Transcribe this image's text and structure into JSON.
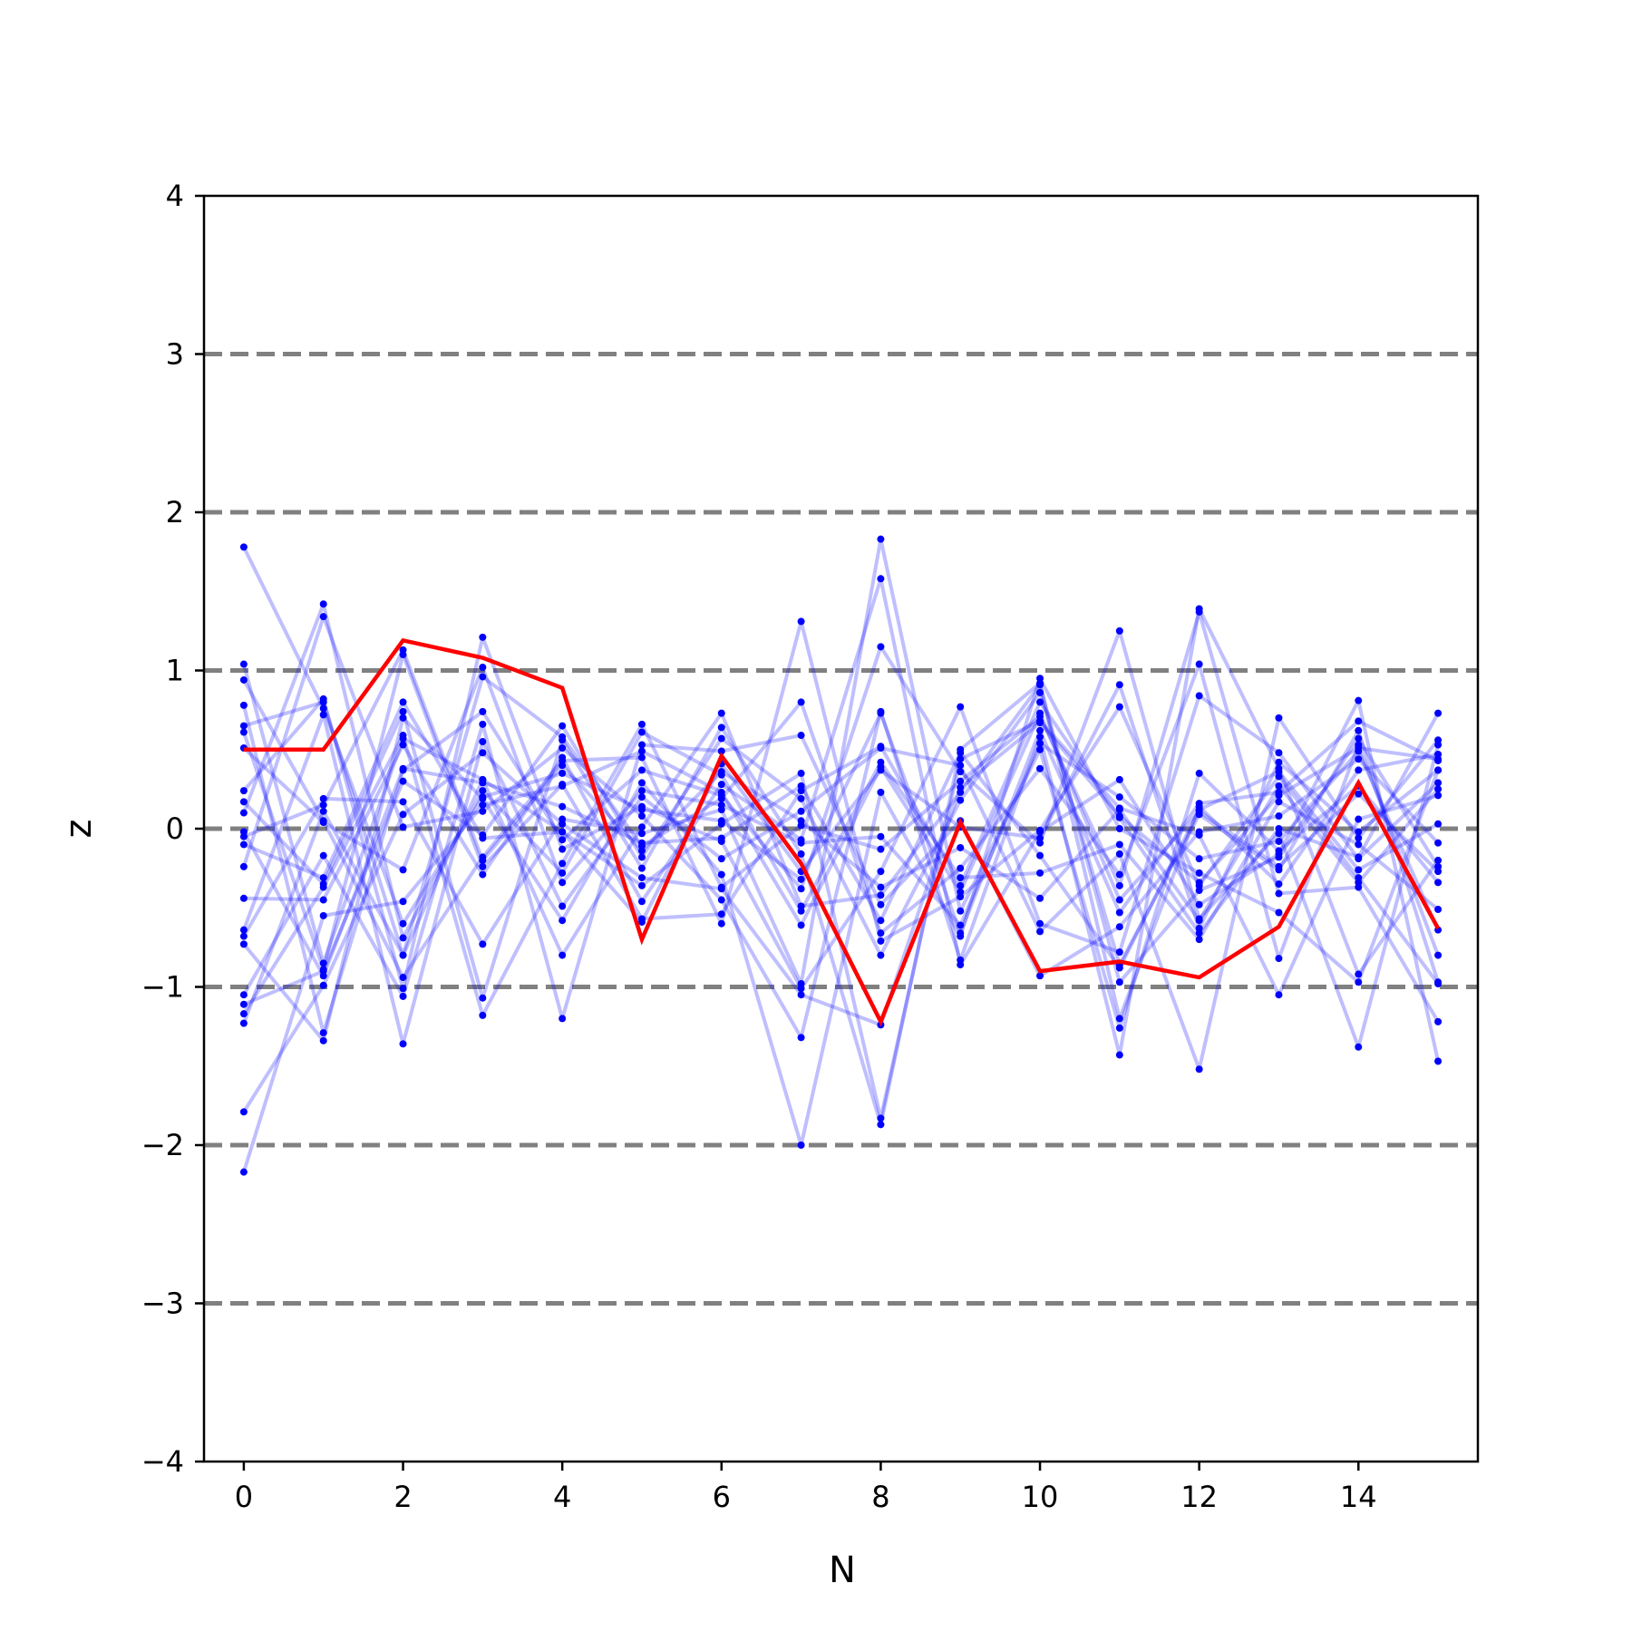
{
  "chart_data": {
    "type": "line",
    "title": "",
    "xlabel": "N",
    "ylabel": "z",
    "xlim": [
      -0.5,
      15.5
    ],
    "ylim": [
      -4,
      4
    ],
    "x": [
      0,
      1,
      2,
      3,
      4,
      5,
      6,
      7,
      8,
      9,
      10,
      11,
      12,
      13,
      14,
      15
    ],
    "x_ticks": [
      0,
      2,
      4,
      6,
      8,
      10,
      12,
      14
    ],
    "x_tick_labels": [
      "0",
      "2",
      "4",
      "6",
      "8",
      "10",
      "12",
      "14"
    ],
    "y_ticks": [
      -4,
      -3,
      -2,
      -1,
      0,
      1,
      2,
      3,
      4
    ],
    "y_tick_labels": [
      "−4",
      "−3",
      "−2",
      "−1",
      "0",
      "1",
      "2",
      "3",
      "4"
    ],
    "reference_lines": [
      -3,
      -2,
      -1,
      0,
      1,
      2,
      3
    ],
    "grid": false,
    "legend": "none",
    "colors": {
      "background_series": "#0000ff",
      "highlight_series": "#ff0000",
      "reference_lines": "#808080",
      "axes": "#000000"
    },
    "highlight_series": {
      "values": [
        0.5,
        0.5,
        1.19,
        1.08,
        0.89,
        -0.7,
        0.46,
        -0.22,
        -1.22,
        0.04,
        -0.9,
        -0.84,
        -0.94,
        -0.62,
        0.29,
        -0.63
      ]
    },
    "background_series": [
      {
        "values": [
          1.78,
          0.76,
          -0.6,
          0.2,
          0.35,
          0.12,
          0.05,
          -0.32,
          0.73,
          -0.66,
          0.62,
          -0.53,
          0.16,
          0.23,
          0.68,
          0.43
        ]
      },
      {
        "values": [
          1.04,
          -0.85,
          0.57,
          0.31,
          -0.8,
          0.01,
          0.73,
          -0.49,
          -0.42,
          0.23,
          0.91,
          -0.97,
          -0.39,
          -0.18,
          0.57,
          -0.24
        ]
      },
      {
        "values": [
          0.94,
          0.05,
          -0.94,
          -0.18,
          0.43,
          0.45,
          -0.6,
          1.31,
          -0.71,
          -0.43,
          -0.01,
          0.77,
          -0.36,
          0.33,
          -0.31,
          -0.98
        ]
      },
      {
        "values": [
          0.78,
          -1.29,
          0.37,
          0.74,
          -0.07,
          0.37,
          0.21,
          -0.38,
          1.15,
          0.36,
          -0.09,
          1.25,
          -0.57,
          -0.03,
          -1.38,
          0.53
        ]
      },
      {
        "values": [
          0.65,
          0.8,
          -0.8,
          0.96,
          0.58,
          -0.11,
          0.19,
          0.8,
          -0.66,
          -0.25,
          0.38,
          -0.29,
          1.04,
          -0.82,
          0.53,
          -0.8
        ]
      },
      {
        "values": [
          0.61,
          -0.89,
          1.1,
          -0.24,
          0.28,
          -0.57,
          -0.54,
          0.24,
          0.52,
          -0.36,
          0.8,
          0.07,
          -0.66,
          0.0,
          -0.18,
          0.73
        ]
      },
      {
        "values": [
          0.24,
          0.82,
          -1.01,
          1.21,
          -0.13,
          0.14,
          -0.08,
          -1.01,
          -0.27,
          0.77,
          -0.6,
          -0.78,
          0.84,
          0.48,
          -0.19,
          0.29
        ]
      },
      {
        "values": [
          0.17,
          -0.35,
          0.74,
          -1.07,
          0.56,
          -0.25,
          0.64,
          -0.16,
          -1.87,
          0.5,
          0.92,
          -1.2,
          0.14,
          -0.35,
          0.37,
          0.47
        ]
      },
      {
        "values": [
          0.1,
          1.42,
          -0.69,
          0.24,
          -0.28,
          0.61,
          0.34,
          -0.52,
          0.42,
          -0.31,
          -0.28,
          -0.1,
          -0.7,
          0.17,
          -0.1,
          -0.51
        ]
      },
      {
        "values": [
          -0.1,
          -0.31,
          0.8,
          -0.06,
          -0.02,
          -0.36,
          0.03,
          0.35,
          -1.83,
          0.44,
          0.68,
          0.13,
          -0.04,
          -1.05,
          0.06,
          0.21
        ]
      },
      {
        "values": [
          -0.24,
          1.34,
          0.01,
          0.11,
          0.51,
          0.08,
          -0.45,
          -1.32,
          0.74,
          -0.83,
          0.58,
          -1.43,
          1.39,
          0.38,
          -0.92,
          -0.2
        ]
      },
      {
        "values": [
          -0.44,
          -0.45,
          0.53,
          -0.29,
          0.45,
          -0.46,
          0.28,
          -0.07,
          1.58,
          -0.86,
          -0.02,
          0.31,
          -0.48,
          -0.16,
          0.81,
          -1.47
        ]
      },
      {
        "values": [
          -0.64,
          0.72,
          -1.36,
          0.55,
          -0.49,
          0.2,
          -0.19,
          0.11,
          0.51,
          0.4,
          -0.65,
          -0.16,
          -1.52,
          0.7,
          -0.06,
          0.56
        ]
      },
      {
        "values": [
          -0.68,
          0.19,
          0.17,
          -0.73,
          0.06,
          -0.03,
          0.12,
          -0.98,
          1.83,
          -0.52,
          0.5,
          -1.26,
          0.35,
          -0.14,
          0.27,
          -0.34
        ]
      },
      {
        "values": [
          -0.73,
          -1.34,
          0.7,
          0.19,
          -0.58,
          0.29,
          -0.29,
          -2.0,
          0.23,
          -0.68,
          0.95,
          0.0,
          -0.28,
          -0.53,
          -0.97,
          0.37
        ]
      },
      {
        "values": [
          -1.05,
          -0.17,
          -1.06,
          0.66,
          -1.2,
          0.53,
          0.49,
          0.59,
          -0.48,
          0.05,
          -0.93,
          -0.62,
          -0.02,
          0.08,
          0.44,
          -0.09
        ]
      },
      {
        "values": [
          -1.11,
          -0.9,
          0.3,
          -0.04,
          0.65,
          -0.18,
          0.57,
          0.19,
          -0.8,
          0.18,
          0.86,
          -0.86,
          0.09,
          -0.26,
          0.62,
          -0.97
        ]
      },
      {
        "values": [
          -1.17,
          -0.37,
          0.59,
          -1.18,
          -0.22,
          0.66,
          -0.37,
          0.02,
          -0.13,
          0.3,
          0.71,
          -0.36,
          1.37,
          -0.41,
          -0.37,
          -1.22
        ]
      },
      {
        "values": [
          -1.23,
          0.11,
          -0.8,
          0.31,
          -0.02,
          -0.59,
          0.41,
          -0.27,
          0.37,
          0.01,
          -0.06,
          0.91,
          -0.63,
          0.42,
          -0.02,
          0.37
        ]
      },
      {
        "values": [
          -1.79,
          -0.99,
          0.09,
          0.48,
          0.03,
          -0.31,
          -0.38,
          -1.05,
          -1.24,
          0.26,
          0.67,
          0.08,
          -0.34,
          0.21,
          0.51,
          0.44
        ]
      },
      {
        "values": [
          -2.17,
          -0.55,
          -0.46,
          0.15,
          0.27,
          0.49,
          0.23,
          -0.61,
          0.39,
          -0.4,
          0.73,
          -0.45,
          0.11,
          -0.24,
          0.22,
          -0.27
        ]
      },
      {
        "values": [
          -0.02,
          -0.93,
          0.38,
          0.29,
          0.14,
          -0.09,
          -0.06,
          0.27,
          -0.58,
          0.48,
          -0.17,
          -0.88,
          0.12,
          0.36,
          -0.26,
          0.03
        ]
      },
      {
        "values": [
          0.51,
          0.04,
          -0.26,
          1.02,
          -0.34,
          0.24,
          0.15,
          -0.09,
          -0.05,
          -0.61,
          0.54,
          0.2,
          -0.19,
          -0.08,
          0.49,
          -0.64
        ]
      },
      {
        "values": [
          -0.05,
          0.15,
          1.13,
          -0.2,
          0.4,
          -0.14,
          0.36,
          0.05,
          -0.37,
          -0.12,
          -0.44,
          0.12,
          -0.58,
          0.27,
          -0.34,
          0.25
        ]
      }
    ]
  }
}
